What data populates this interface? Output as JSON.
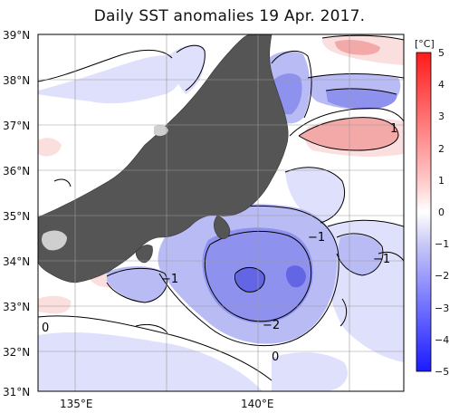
{
  "title": "Daily SST anomalies 19 Apr. 2017.",
  "map": {
    "lat_labels": [
      "39°N",
      "38°N",
      "37°N",
      "36°N",
      "35°N",
      "34°N",
      "33°N",
      "32°N",
      "31°N"
    ],
    "lon_labels": [
      "135°E",
      "140°E"
    ],
    "contour_labels": [
      "1",
      "−1",
      "−1",
      "−1",
      "−2",
      "0",
      "0"
    ]
  },
  "colorbar": {
    "unit": "[°C]",
    "ticks": [
      "5",
      "4",
      "3",
      "2",
      "1",
      "0",
      "−1",
      "−2",
      "−3",
      "−4",
      "−5"
    ],
    "colors": {
      "warm_max": "#ff1a1a",
      "neutral": "#ffffff",
      "cold_max": "#1a1aff"
    }
  },
  "palette": {
    "land": "#555555",
    "lake_grey": "#cfcfcf",
    "grid": "#9a9a9a"
  }
}
